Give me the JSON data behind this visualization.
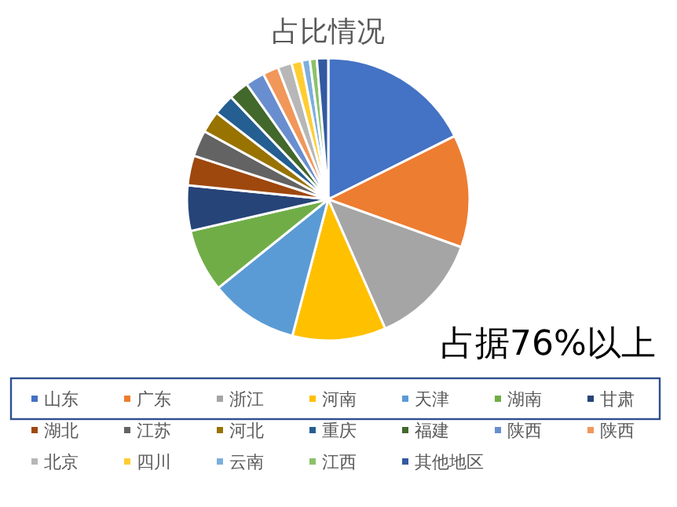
{
  "chart_data": {
    "type": "pie",
    "title": "占比情况",
    "categories": [
      "山东",
      "广东",
      "浙江",
      "河南",
      "天津",
      "湖南",
      "甘肃",
      "湖北",
      "江苏",
      "河北",
      "重庆",
      "福建",
      "陕西",
      "陕西",
      "北京",
      "四川",
      "云南",
      "江西",
      "其他地区"
    ],
    "values": [
      17.6,
      12.9,
      12.9,
      10.7,
      10.1,
      7.2,
      5.2,
      3.4,
      3.0,
      2.5,
      2.4,
      2.3,
      2.2,
      1.8,
      1.6,
      1.2,
      0.9,
      0.8,
      1.3
    ],
    "colors": [
      "#4472c4",
      "#ed7d31",
      "#a5a5a5",
      "#ffc000",
      "#5b9bd5",
      "#70ad47",
      "#264478",
      "#9e480e",
      "#636363",
      "#997300",
      "#255e91",
      "#43682b",
      "#698ed0",
      "#f1975a",
      "#b7b7b7",
      "#ffcd33",
      "#7cafdd",
      "#8cc168",
      "#335aa1"
    ],
    "legend": "bottom",
    "annotations": [
      "占据76%以上"
    ]
  }
}
